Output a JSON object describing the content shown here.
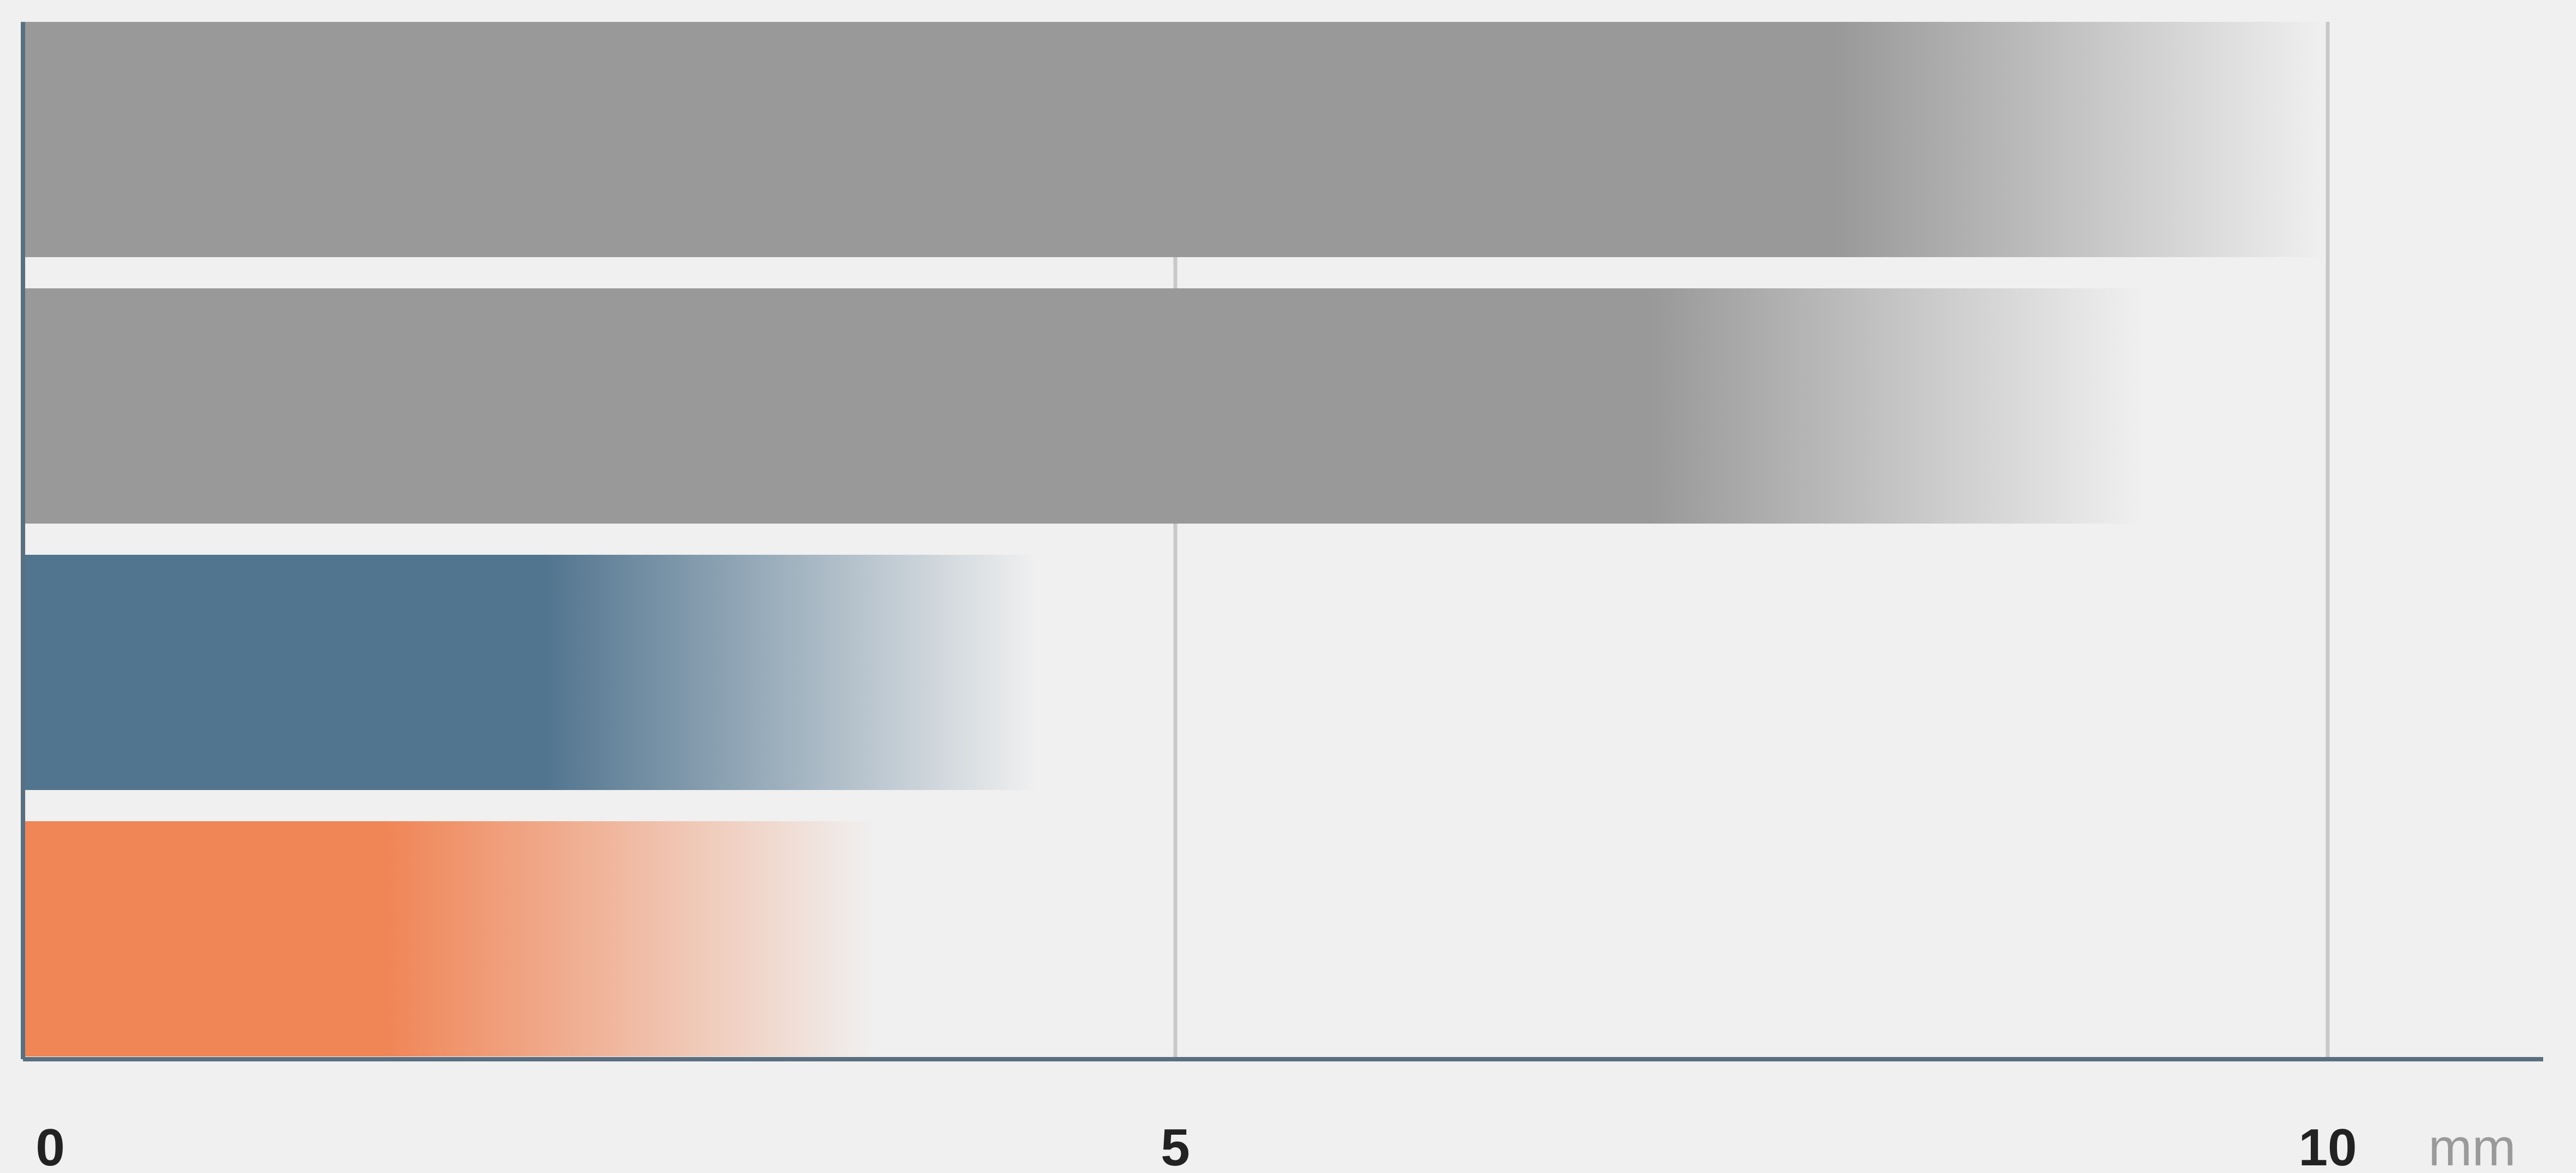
{
  "chart_data": {
    "type": "bar",
    "orientation": "horizontal",
    "title": "",
    "xlabel": "",
    "ylabel": "",
    "unit": "mm",
    "xlim": [
      0,
      10
    ],
    "xticks": [
      "0",
      "5",
      "10"
    ],
    "grid": true,
    "legend": "none",
    "bars": [
      {
        "value": 10.0,
        "color": "#999999"
      },
      {
        "value": 9.2,
        "color": "#999999"
      },
      {
        "value": 4.4,
        "color": "#52758f"
      },
      {
        "value": 3.7,
        "color": "#f08556"
      }
    ]
  }
}
